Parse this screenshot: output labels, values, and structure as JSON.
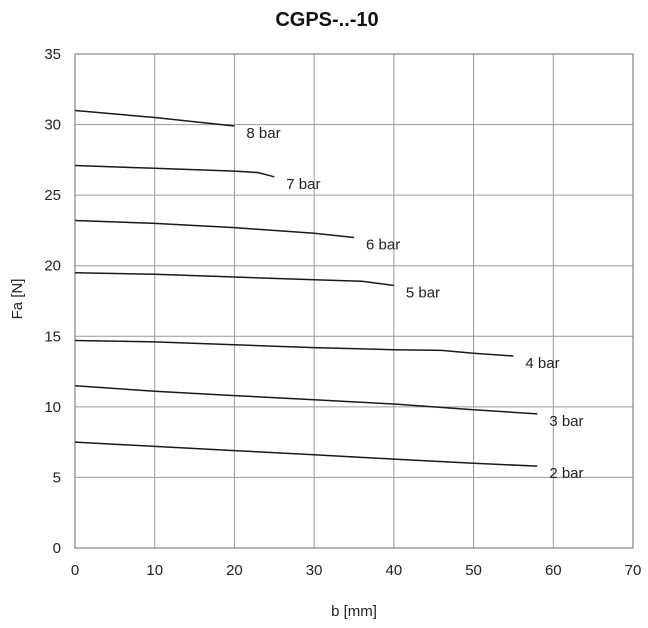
{
  "chart_data": {
    "type": "line",
    "title": "CGPS-..-10",
    "xlabel": "b [mm]",
    "ylabel": "Fa [N]",
    "xlim": [
      0,
      70
    ],
    "ylim": [
      0,
      35
    ],
    "xticks": [
      0,
      10,
      20,
      30,
      40,
      50,
      60,
      70
    ],
    "yticks": [
      0,
      5,
      10,
      15,
      20,
      25,
      30,
      35
    ],
    "grid": true,
    "legend": "none",
    "series": [
      {
        "name": "8 bar",
        "x": [
          0,
          10,
          20
        ],
        "y": [
          31.0,
          30.5,
          29.9
        ]
      },
      {
        "name": "7 bar",
        "x": [
          0,
          10,
          20,
          23,
          25
        ],
        "y": [
          27.1,
          26.9,
          26.7,
          26.6,
          26.3
        ]
      },
      {
        "name": "6 bar",
        "x": [
          0,
          10,
          20,
          30,
          35
        ],
        "y": [
          23.2,
          23.0,
          22.7,
          22.3,
          22.0
        ]
      },
      {
        "name": "5 bar",
        "x": [
          0,
          10,
          20,
          30,
          36,
          40
        ],
        "y": [
          19.5,
          19.4,
          19.2,
          19.0,
          18.9,
          18.6
        ]
      },
      {
        "name": "4 bar",
        "x": [
          0,
          10,
          20,
          30,
          40,
          46,
          50,
          55
        ],
        "y": [
          14.7,
          14.6,
          14.4,
          14.2,
          14.05,
          14.0,
          13.8,
          13.6
        ]
      },
      {
        "name": "3 bar",
        "x": [
          0,
          10,
          20,
          30,
          40,
          50,
          58
        ],
        "y": [
          11.5,
          11.1,
          10.8,
          10.5,
          10.2,
          9.8,
          9.5
        ]
      },
      {
        "name": "2 bar",
        "x": [
          0,
          10,
          20,
          30,
          40,
          50,
          58
        ],
        "y": [
          7.5,
          7.2,
          6.9,
          6.6,
          6.3,
          6.0,
          5.8
        ]
      }
    ]
  }
}
